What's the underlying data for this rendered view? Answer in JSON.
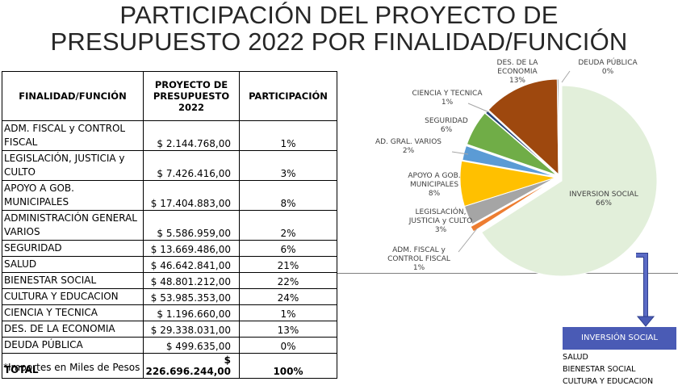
{
  "title": {
    "line1": "PARTICIPACIÓN DEL PROYECTO DE",
    "line2": "PRESUPUESTO 2022 POR FINALIDAD/FUNCIÓN"
  },
  "table": {
    "headers": [
      "FINALIDAD/FUNCIÓN",
      "PROYECTO DE PRESUPUESTO 2022",
      "PARTICIPACIÓN"
    ],
    "rows": [
      {
        "name": "ADM. FISCAL y CONTROL FISCAL",
        "amount": "$ 2.144.768,00",
        "pct": "1%"
      },
      {
        "name": "LEGISLACIÓN, JUSTICIA y CULTO",
        "amount": "$ 7.426.416,00",
        "pct": "3%"
      },
      {
        "name": "APOYO A GOB. MUNICIPALES",
        "amount": "$ 17.404.883,00",
        "pct": "8%"
      },
      {
        "name": "ADMINISTRACIÓN GENERAL VARIOS",
        "amount": "$ 5.586.959,00",
        "pct": "2%"
      },
      {
        "name": "SEGURIDAD",
        "amount": "$ 13.669.486,00",
        "pct": "6%"
      },
      {
        "name": "SALUD",
        "amount": "$ 46.642.841,00",
        "pct": "21%"
      },
      {
        "name": "BIENESTAR SOCIAL",
        "amount": "$ 48.801.212,00",
        "pct": "22%"
      },
      {
        "name": "CULTURA Y EDUCACION",
        "amount": "$ 53.985.353,00",
        "pct": "24%"
      },
      {
        "name": "CIENCIA Y TECNICA",
        "amount": "$ 1.196.660,00",
        "pct": "1%"
      },
      {
        "name": "DES. DE LA ECONOMIA",
        "amount": "$ 29.338.031,00",
        "pct": "13%"
      },
      {
        "name": "DEUDA PÚBLICA",
        "amount": "$ 499.635,00",
        "pct": "0%"
      }
    ],
    "total": {
      "name": "TOTAL",
      "amount": "$ 226.696.244,00",
      "pct": "100%"
    }
  },
  "footnote": "*Importes en Miles de Pesos",
  "chart_data": {
    "type": "pie",
    "slices": [
      {
        "name": "INVERSION SOCIAL",
        "value": 149429406,
        "pct_label": "66%",
        "color": "#e2efda"
      },
      {
        "name": "ADM. FISCAL y CONTROL FISCAL",
        "value": 2144768,
        "pct_label": "1%",
        "color": "#ed7d31"
      },
      {
        "name": "LEGISLACIÓN, JUSTICIA y CULTO",
        "value": 7426416,
        "pct_label": "3%",
        "color": "#a5a5a5"
      },
      {
        "name": "APOYO A GOB. MUNICIPALES",
        "value": 17404883,
        "pct_label": "8%",
        "color": "#ffc000"
      },
      {
        "name": "AD. GRAL. VARIOS",
        "value": 5586959,
        "pct_label": "2%",
        "color": "#5b9bd5"
      },
      {
        "name": "SEGURIDAD",
        "value": 13669486,
        "pct_label": "6%",
        "color": "#70ad47"
      },
      {
        "name": "CIENCIA Y TECNICA",
        "value": 1196660,
        "pct_label": "1%",
        "color": "#264478"
      },
      {
        "name": "DES. DE LA ECONOMIA",
        "value": 29338031,
        "pct_label": "13%",
        "color": "#9e480e"
      },
      {
        "name": "DEUDA PÚBLICA",
        "value": 499635,
        "pct_label": "0%",
        "color": "#636363"
      }
    ]
  },
  "inversion_social": {
    "title": "INVERSIÓN SOCIAL",
    "items": [
      "SALUD",
      "BIENESTAR SOCIAL",
      "CULTURA Y EDUCACION"
    ]
  },
  "colors": {
    "arrow": "#4a5bb5",
    "box": "#4a5bb5"
  }
}
